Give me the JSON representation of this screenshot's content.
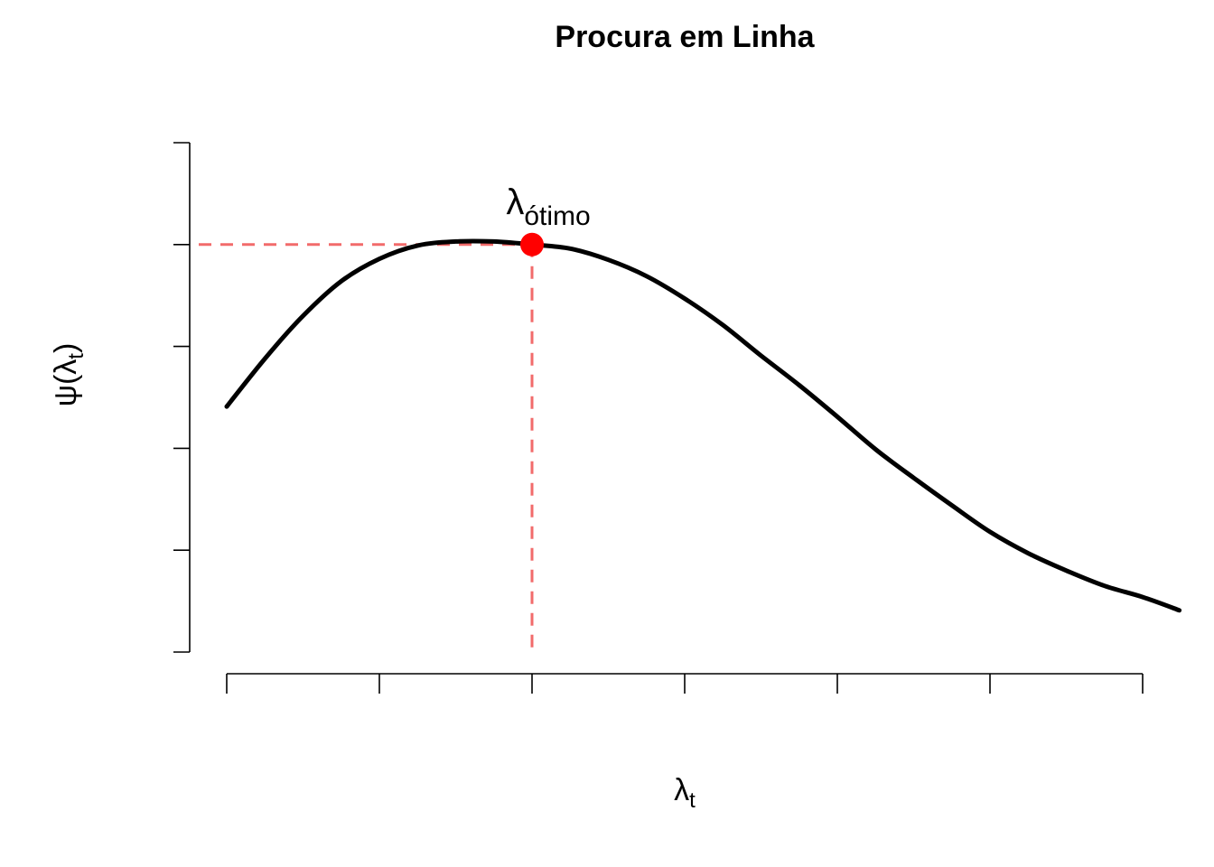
{
  "chart_data": {
    "type": "line",
    "title": "Procura em Linha",
    "xlabel": {
      "base": "λ",
      "sub": "t"
    },
    "ylabel": {
      "base": "ψ(λ",
      "sub": "t",
      "close": ")"
    },
    "xlim": [
      0,
      6
    ],
    "ylim": [
      0,
      5
    ],
    "x_ticks": [
      0,
      1,
      2,
      3,
      4,
      5,
      6
    ],
    "y_ticks": [
      0,
      1,
      2,
      3,
      4,
      5
    ],
    "tick_labels_shown": false,
    "grid": false,
    "series": [
      {
        "x": [
          0,
          0.25,
          0.5,
          0.75,
          1,
          1.25,
          1.5,
          1.75,
          2,
          2.25,
          2.5,
          2.75,
          3,
          3.25,
          3.5,
          3.75,
          4,
          4.25,
          4.5,
          4.75,
          5,
          5.25,
          5.5,
          5.75,
          6,
          6.24
        ],
        "y": [
          2.41,
          2.88,
          3.3,
          3.64,
          3.86,
          3.99,
          4.03,
          4.03,
          4.0,
          3.96,
          3.85,
          3.69,
          3.47,
          3.21,
          2.91,
          2.62,
          2.31,
          1.99,
          1.71,
          1.44,
          1.18,
          0.97,
          0.8,
          0.65,
          0.54,
          0.41
        ],
        "color": "#000000"
      }
    ],
    "optimum": {
      "x": 2,
      "y": 4,
      "label_base": "λ",
      "label_sub": "ótimo",
      "point_color": "#ff0000",
      "guide_color": "#f26b6b"
    }
  }
}
